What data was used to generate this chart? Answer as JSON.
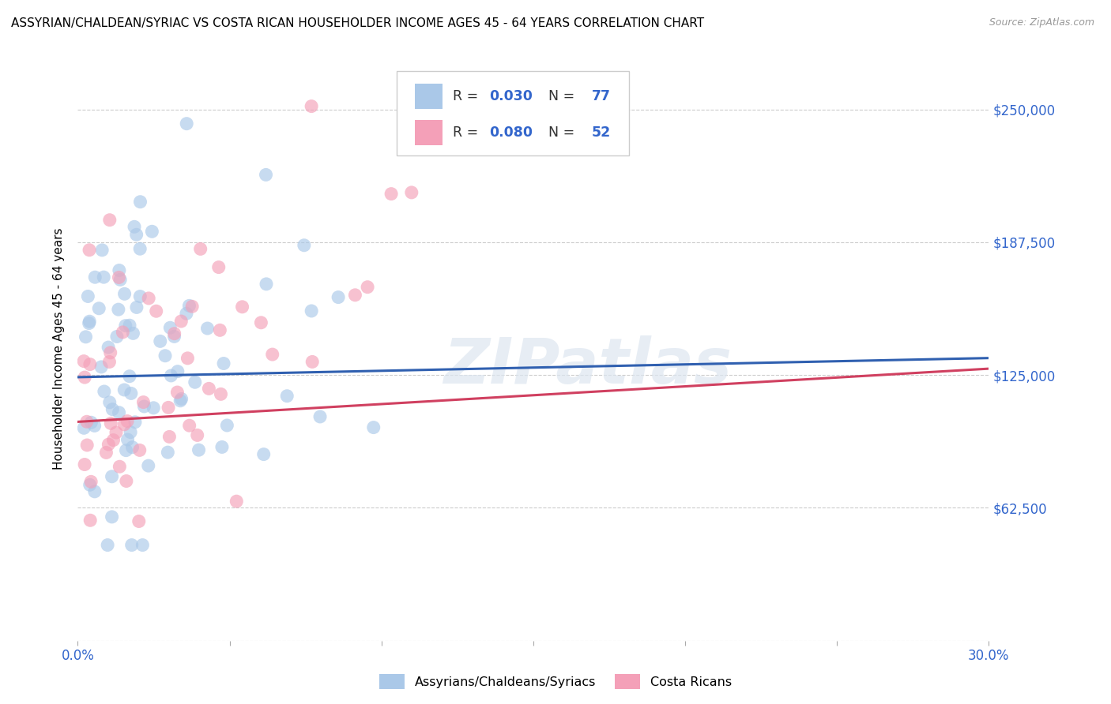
{
  "title": "ASSYRIAN/CHALDEAN/SYRIAC VS COSTA RICAN HOUSEHOLDER INCOME AGES 45 - 64 YEARS CORRELATION CHART",
  "source": "Source: ZipAtlas.com",
  "ylabel": "Householder Income Ages 45 - 64 years",
  "xlim": [
    0.0,
    0.3
  ],
  "ylim": [
    0,
    275000
  ],
  "ytick_positions": [
    0,
    62500,
    125000,
    187500,
    250000
  ],
  "ytick_labels_right": [
    "",
    "$62,500",
    "$125,000",
    "$187,500",
    "$250,000"
  ],
  "xtick_positions": [
    0.0,
    0.05,
    0.1,
    0.15,
    0.2,
    0.25,
    0.3
  ],
  "xtick_labels": [
    "0.0%",
    "",
    "",
    "",
    "",
    "",
    "30.0%"
  ],
  "blue_R": 0.03,
  "blue_N": 77,
  "pink_R": 0.08,
  "pink_N": 52,
  "blue_dot_color": "#aac8e8",
  "pink_dot_color": "#f4a0b8",
  "blue_line_color": "#3060b0",
  "pink_line_color": "#d04060",
  "watermark": "ZIPatlas",
  "legend_label_blue": "Assyrians/Chaldeans/Syriacs",
  "legend_label_pink": "Costa Ricans",
  "blue_line_x0": 0.0,
  "blue_line_y0": 124000,
  "blue_line_x1": 0.3,
  "blue_line_y1": 133000,
  "pink_line_x0": 0.0,
  "pink_line_y0": 103000,
  "pink_line_x1": 0.3,
  "pink_line_y1": 128000
}
